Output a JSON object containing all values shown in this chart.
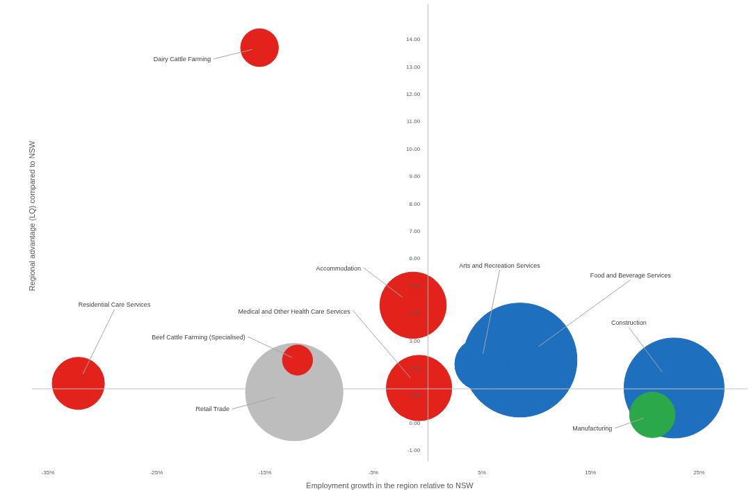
{
  "chart_data": {
    "type": "bubble",
    "xlabel": "Employment growth in the region relative to NSW",
    "ylabel": "Regional advantage (LQ) compared to NSW",
    "xlim": [
      -36.5,
      29.5
    ],
    "ylim": [
      -1.4,
      15.3
    ],
    "xticks": [
      {
        "value": -35,
        "label": "-35%"
      },
      {
        "value": -25,
        "label": "-25%"
      },
      {
        "value": -15,
        "label": "-15%"
      },
      {
        "value": -5,
        "label": "-5%"
      },
      {
        "value": 5,
        "label": "5%"
      },
      {
        "value": 15,
        "label": "15%"
      },
      {
        "value": 25,
        "label": "25%"
      }
    ],
    "yticks": [
      {
        "value": -1,
        "label": "-1.00"
      },
      {
        "value": 0,
        "label": "0.00"
      },
      {
        "value": 1,
        "label": "1.00"
      },
      {
        "value": 2,
        "label": "2.00"
      },
      {
        "value": 3,
        "label": "3.00"
      },
      {
        "value": 4,
        "label": "4.00"
      },
      {
        "value": 5,
        "label": "5.00"
      },
      {
        "value": 6,
        "label": "6.00"
      },
      {
        "value": 7,
        "label": "7.00"
      },
      {
        "value": 8,
        "label": "8.00"
      },
      {
        "value": 9,
        "label": "9.00"
      },
      {
        "value": 10,
        "label": "10.00"
      },
      {
        "value": 11,
        "label": "11.00"
      },
      {
        "value": 12,
        "label": "12.00"
      },
      {
        "value": 13,
        "label": "13.00"
      },
      {
        "value": 14,
        "label": "14.00"
      }
    ],
    "ref_lines": [
      {
        "axis": "y",
        "value": 1.25,
        "color": "#bfbfbf"
      }
    ],
    "grid": false,
    "legend": false,
    "series": [
      {
        "name": "Dairy Cattle Farming",
        "color": "#e3231b",
        "x": [
          -15.5
        ],
        "values": [
          13.7
        ],
        "sizes": [
          0.11
        ]
      },
      {
        "name": "Residential Care Services",
        "color": "#e3231b",
        "x": [
          -32.2
        ],
        "values": [
          1.45
        ],
        "sizes": [
          0.21
        ]
      },
      {
        "name": "Retail Trade",
        "color": "#bdbdbd",
        "x": [
          -12.3
        ],
        "values": [
          1.13
        ],
        "sizes": [
          0.73
        ]
      },
      {
        "name": "Beef Cattle Farming (Specialised)",
        "color": "#e3231b",
        "x": [
          -12.0
        ],
        "values": [
          2.3
        ],
        "sizes": [
          0.07
        ]
      },
      {
        "name": "Accommodation",
        "color": "#e3231b",
        "x": [
          -1.35
        ],
        "values": [
          4.3
        ],
        "sizes": [
          0.34
        ]
      },
      {
        "name": "Medical and Other Health Care Services",
        "color": "#e3231b",
        "x": [
          -0.8
        ],
        "values": [
          1.28
        ],
        "sizes": [
          0.33
        ]
      },
      {
        "name": "Food and Beverage Services",
        "color": "#1f6fbf",
        "x": [
          8.5
        ],
        "values": [
          2.3
        ],
        "sizes": [
          1.0
        ]
      },
      {
        "name": "Arts and Recreation Services",
        "color": "#1f6fbf",
        "x": [
          4.9
        ],
        "values": [
          2.15
        ],
        "sizes": [
          0.21
        ]
      },
      {
        "name": "Construction",
        "color": "#1f6fbf",
        "x": [
          22.7
        ],
        "values": [
          1.28
        ],
        "sizes": [
          0.77
        ]
      },
      {
        "name": "Manufacturing",
        "color": "#2aa84a",
        "x": [
          20.7
        ],
        "values": [
          0.3
        ],
        "sizes": [
          0.16
        ]
      }
    ]
  }
}
